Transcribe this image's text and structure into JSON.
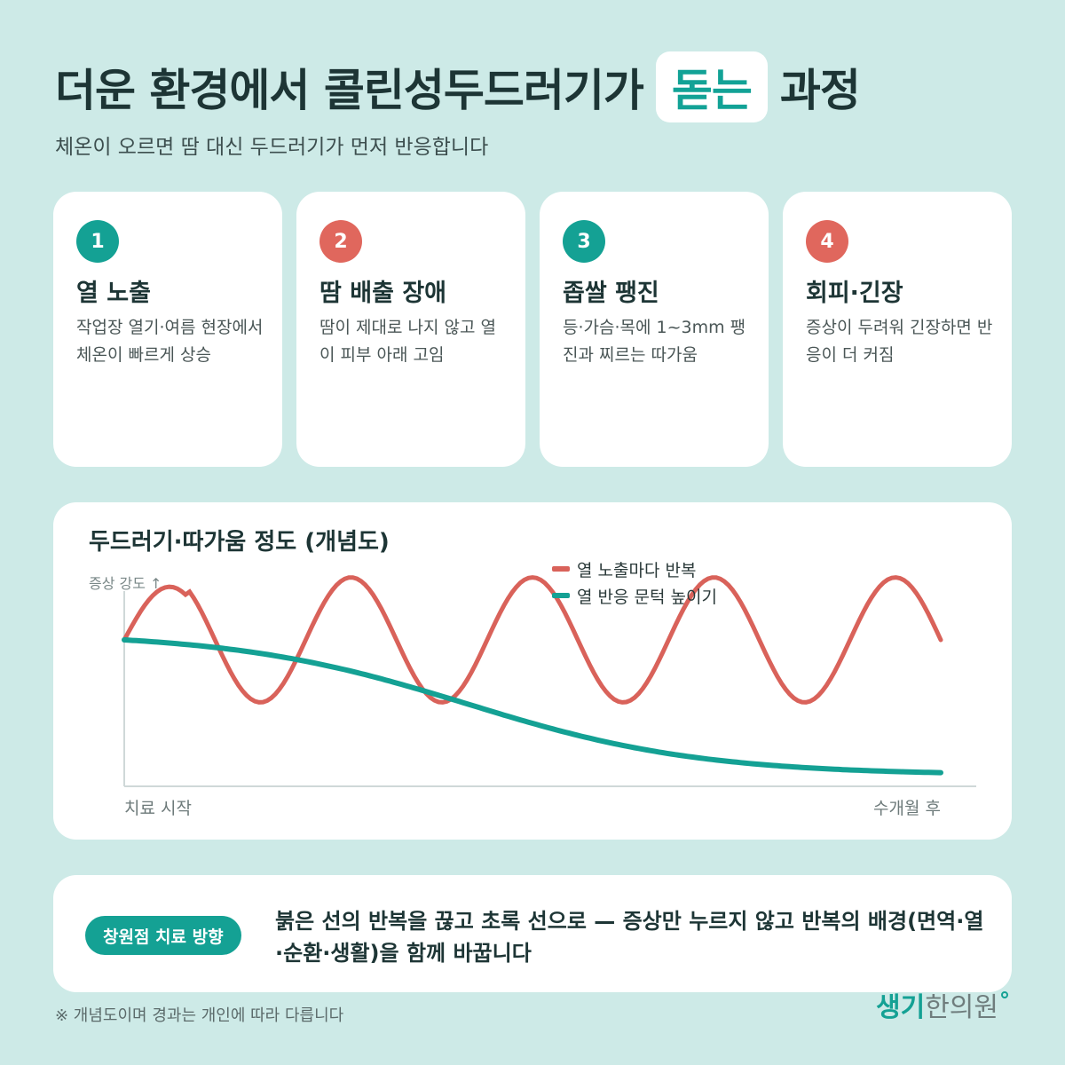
{
  "header": {
    "title_before": "더운 환경에서 콜린성두드러기가",
    "title_highlight": "돋는",
    "title_after": "과정",
    "subtitle": "체온이 오르면 땀 대신 두드러기가 먼저 반응합니다"
  },
  "steps": [
    {
      "number": "1",
      "title": "열 노출",
      "desc": "작업장 열기·여름 현장에서 체온이 빠르게 상승",
      "color": "#14a194"
    },
    {
      "number": "2",
      "title": "땀 배출 장애",
      "desc": "땀이 제대로 나지 않고 열이 피부 아래 고임",
      "color": "#e0675d"
    },
    {
      "number": "3",
      "title": "좁쌀 팽진",
      "desc": "등·가슴·목에 1~3mm 팽진과 찌르는 따가움",
      "color": "#14a194"
    },
    {
      "number": "4",
      "title": "회피·긴장",
      "desc": "증상이 두려워 긴장하면 반응이 더 커짐",
      "color": "#e0675d"
    }
  ],
  "chart_data": {
    "type": "line",
    "title": "두드러기·따가움 정도 (개념도)",
    "ylabel": "증상 강도 ↑",
    "xlabel_start": "치료 시작",
    "xlabel_end": "수개월 후",
    "x": [
      0,
      1
    ],
    "series": [
      {
        "name": "열 노출마다 반복",
        "color": "#d9625a",
        "shape": "oscillating",
        "cycles": 4.5,
        "baseline": 0.75,
        "amplitude": 0.32
      },
      {
        "name": "열 반응 문턱 높이기",
        "color": "#14a194",
        "shape": "declining",
        "start": 0.75,
        "end": 0.07
      }
    ],
    "legend_position": "top-right",
    "grid": false
  },
  "note": {
    "badge": "창원점 치료 방향",
    "text": "붉은 선의 반복을 끊고 초록 선으로 — 증상만 누르지 않고 반복의 배경(면역·열·순환·생활)을 함께 바꿉니다"
  },
  "footer": {
    "footnote": "※ 개념도이며 경과는 개인에 따라 다릅니다",
    "brand_a": "생기",
    "brand_b": "한의원"
  }
}
